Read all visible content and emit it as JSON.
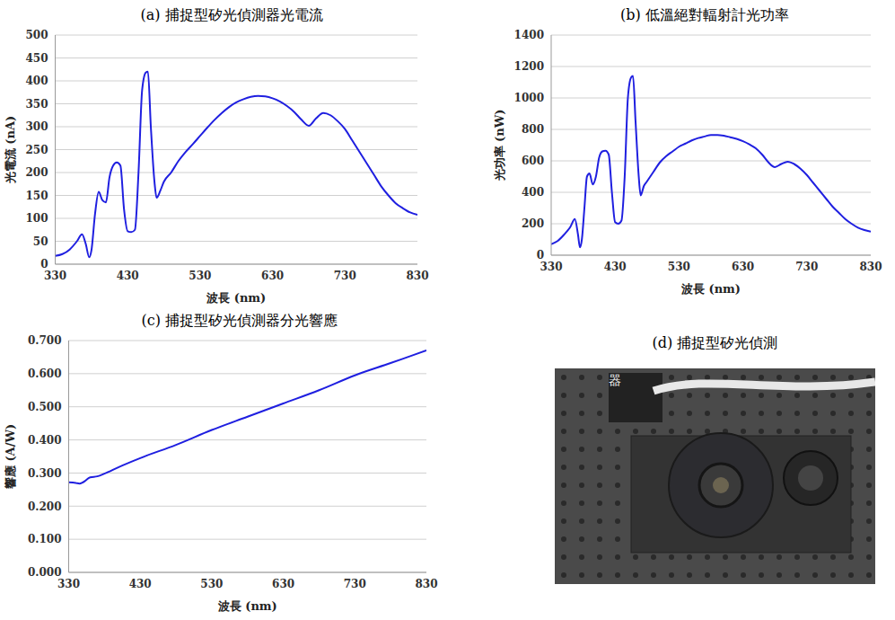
{
  "chart_data": [
    {
      "type": "line",
      "title": "(a) 捕捉型矽光偵測器光電流",
      "xlabel": "波長 (nm)",
      "ylabel": "光電流 (nA)",
      "color": "#1f1fe0",
      "grid": true,
      "xlim": [
        330,
        830
      ],
      "xticks": [
        330,
        430,
        530,
        630,
        730,
        830
      ],
      "ylim": [
        0,
        500
      ],
      "yticks": [
        0,
        50,
        100,
        150,
        200,
        250,
        300,
        350,
        400,
        450,
        500
      ],
      "x": [
        330,
        340,
        350,
        360,
        367,
        372,
        377,
        380,
        385,
        390,
        395,
        400,
        405,
        410,
        415,
        420,
        425,
        430,
        435,
        440,
        445,
        450,
        455,
        458,
        462,
        467,
        470,
        475,
        480,
        490,
        500,
        510,
        520,
        530,
        540,
        550,
        560,
        570,
        580,
        590,
        600,
        610,
        620,
        630,
        640,
        650,
        660,
        670,
        680,
        690,
        700,
        710,
        720,
        730,
        740,
        750,
        760,
        770,
        780,
        790,
        800,
        810,
        820,
        830
      ],
      "values": [
        18,
        22,
        32,
        50,
        65,
        45,
        15,
        30,
        110,
        158,
        140,
        135,
        190,
        215,
        222,
        215,
        120,
        72,
        70,
        75,
        200,
        380,
        418,
        420,
        300,
        180,
        145,
        160,
        180,
        200,
        225,
        245,
        262,
        280,
        298,
        315,
        330,
        343,
        353,
        360,
        365,
        367,
        366,
        362,
        355,
        345,
        332,
        315,
        302,
        318,
        330,
        325,
        312,
        295,
        270,
        245,
        220,
        195,
        170,
        150,
        133,
        122,
        113,
        108
      ]
    },
    {
      "type": "line",
      "title": "(b) 低溫絕對輻射計光功率",
      "xlabel": "波長 (nm)",
      "ylabel": "光功率 (nW)",
      "color": "#1f1fe0",
      "grid": true,
      "xlim": [
        330,
        830
      ],
      "xticks": [
        330,
        430,
        530,
        630,
        730,
        830
      ],
      "ylim": [
        0,
        1400
      ],
      "yticks": [
        0,
        200,
        400,
        600,
        800,
        1000,
        1200,
        1400
      ],
      "x": [
        330,
        340,
        350,
        360,
        367,
        372,
        375,
        378,
        382,
        386,
        390,
        395,
        400,
        405,
        410,
        415,
        420,
        425,
        430,
        435,
        440,
        445,
        450,
        455,
        458,
        462,
        467,
        470,
        475,
        480,
        490,
        500,
        510,
        520,
        530,
        540,
        550,
        560,
        570,
        580,
        590,
        600,
        610,
        620,
        630,
        640,
        650,
        660,
        670,
        680,
        690,
        700,
        710,
        720,
        730,
        740,
        750,
        760,
        770,
        780,
        790,
        800,
        810,
        820,
        830
      ],
      "values": [
        70,
        90,
        130,
        180,
        230,
        130,
        50,
        100,
        300,
        500,
        520,
        450,
        500,
        620,
        660,
        665,
        640,
        400,
        210,
        200,
        220,
        500,
        1000,
        1130,
        1140,
        850,
        500,
        380,
        440,
        470,
        530,
        590,
        630,
        660,
        690,
        710,
        730,
        745,
        755,
        765,
        765,
        760,
        750,
        740,
        725,
        705,
        680,
        640,
        590,
        560,
        580,
        595,
        580,
        550,
        510,
        460,
        410,
        360,
        310,
        270,
        230,
        200,
        175,
        160,
        150
      ]
    },
    {
      "type": "line",
      "title": "(c) 捕捉型矽光偵測器分光響應",
      "xlabel": "波長 (nm)",
      "ylabel": "響應 (A/W)",
      "color": "#1f1fe0",
      "grid": true,
      "xlim": [
        330,
        830
      ],
      "xticks": [
        330,
        430,
        530,
        630,
        730,
        830
      ],
      "ylim": [
        0,
        0.7
      ],
      "yticks": [
        {
          "value": 0,
          "label": "0.000"
        },
        {
          "value": 0.1,
          "label": "0.100"
        },
        {
          "value": 0.2,
          "label": "0.200"
        },
        {
          "value": 0.3,
          "label": "0.300"
        },
        {
          "value": 0.4,
          "label": "0.400"
        },
        {
          "value": 0.5,
          "label": "0.500"
        },
        {
          "value": 0.6,
          "label": "0.600"
        },
        {
          "value": 0.7,
          "label": "0.700"
        }
      ],
      "x": [
        330,
        340,
        345,
        350,
        360,
        370,
        380,
        400,
        430,
        480,
        530,
        580,
        630,
        680,
        730,
        780,
        810,
        830
      ],
      "values": [
        0.272,
        0.27,
        0.268,
        0.272,
        0.287,
        0.29,
        0.298,
        0.318,
        0.345,
        0.385,
        0.43,
        0.47,
        0.51,
        0.55,
        0.595,
        0.632,
        0.655,
        0.67
      ]
    }
  ],
  "photo": {
    "title": "(d) 捕捉型矽光偵測",
    "text": "器"
  }
}
